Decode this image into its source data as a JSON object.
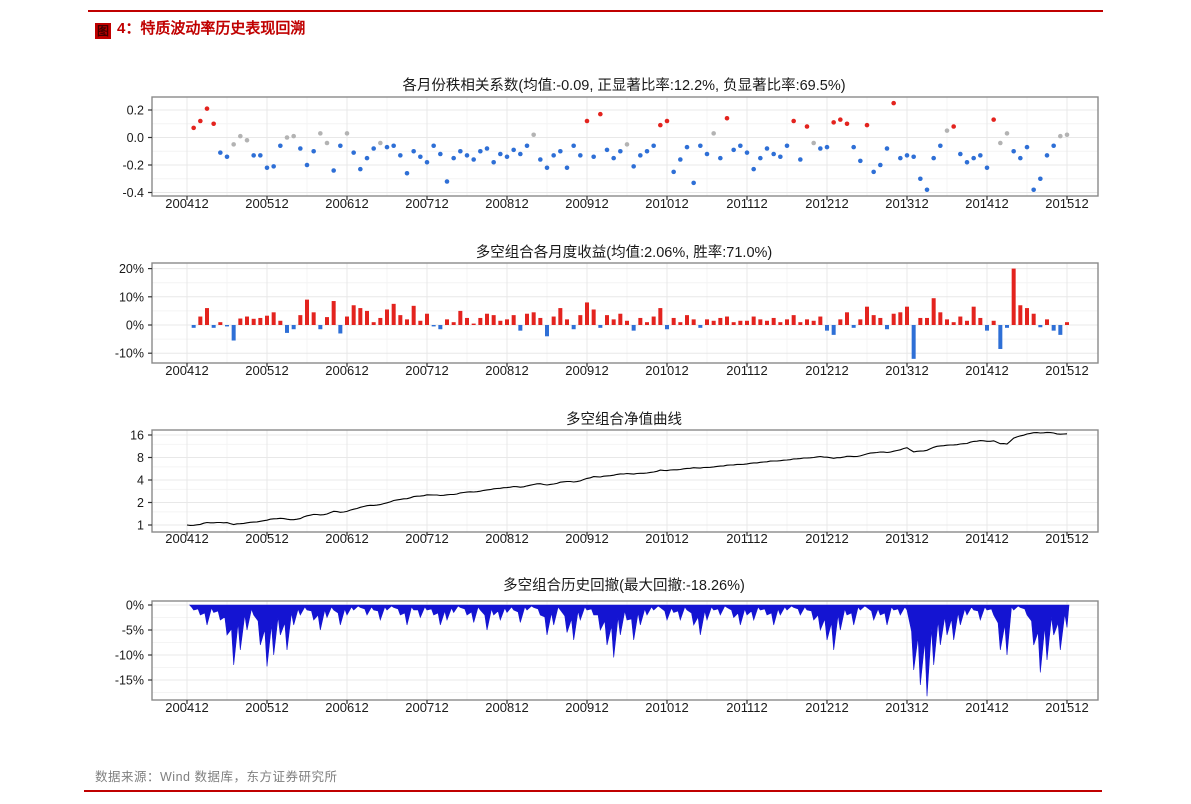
{
  "caption": {
    "badge_char": "图",
    "label": "4：特质波动率历史表现回溯",
    "accent_color": "#c00000"
  },
  "footer": {
    "source_text": "数据来源：Wind 数据库，东方证券研究所"
  },
  "palette": {
    "positive_red": "#e3231e",
    "negative_blue": "#2e6fd6",
    "neutral_gray": "#b3b3b3",
    "nav_line_black": "#000000",
    "drawdown_blue": "#1414d2",
    "rule_red": "#c00000",
    "panel_border": "#8a8a8a",
    "grid_major": "#e8e8e8",
    "grid_minor": "#f4f4f4",
    "tick_text": "#1a1a1a",
    "footer_gray": "#7f7f7f"
  },
  "x_axis": {
    "tick_labels": [
      "200412",
      "200512",
      "200612",
      "200712",
      "200812",
      "200912",
      "201012",
      "201112",
      "201212",
      "201312",
      "201412",
      "201512"
    ],
    "months_per_tick": 12
  },
  "chart_data": [
    {
      "id": "rank-correlation",
      "type": "scatter",
      "title": "各月份秩相关系数(均值:-0.09, 正显著比率:12.2%, 负显著比率:69.5%)",
      "mean": -0.09,
      "positive_significant_rate": "12.2%",
      "negative_significant_rate": "69.5%",
      "y_ticks": [
        "0.2",
        "0.0",
        "-0.2",
        "-0.4"
      ],
      "ylim": [
        -0.425,
        0.295
      ],
      "point_color_rule": "red if value > 0.05 (positive significant), blue if value < -0.05 (negative significant), gray otherwise",
      "values": [
        0.07,
        0.12,
        0.21,
        0.1,
        -0.11,
        -0.14,
        -0.05,
        0.01,
        -0.02,
        -0.13,
        -0.13,
        -0.22,
        -0.21,
        -0.06,
        0.0,
        0.01,
        -0.08,
        -0.2,
        -0.1,
        0.03,
        -0.04,
        -0.24,
        -0.06,
        0.03,
        -0.11,
        -0.23,
        -0.15,
        -0.08,
        -0.04,
        -0.07,
        -0.06,
        -0.13,
        -0.26,
        -0.1,
        -0.14,
        -0.18,
        -0.06,
        -0.12,
        -0.32,
        -0.15,
        -0.1,
        -0.13,
        -0.16,
        -0.1,
        -0.08,
        -0.18,
        -0.12,
        -0.14,
        -0.09,
        -0.12,
        -0.06,
        0.02,
        -0.16,
        -0.22,
        -0.13,
        -0.1,
        -0.22,
        -0.06,
        -0.13,
        0.12,
        -0.14,
        0.17,
        -0.09,
        -0.15,
        -0.1,
        -0.05,
        -0.21,
        -0.13,
        -0.1,
        -0.06,
        0.09,
        0.12,
        -0.25,
        -0.16,
        -0.07,
        -0.33,
        -0.06,
        -0.12,
        0.03,
        -0.15,
        0.14,
        -0.09,
        -0.06,
        -0.11,
        -0.23,
        -0.15,
        -0.08,
        -0.12,
        -0.14,
        -0.06,
        0.12,
        -0.16,
        0.08,
        -0.04,
        -0.08,
        -0.07,
        0.11,
        0.13,
        0.1,
        -0.07,
        -0.17,
        0.09,
        -0.25,
        -0.2,
        -0.08,
        0.25,
        -0.15,
        -0.13,
        -0.14,
        -0.3,
        -0.38,
        -0.15,
        -0.06,
        0.05,
        0.08,
        -0.12,
        -0.18,
        -0.15,
        -0.13,
        -0.22,
        0.13,
        -0.04,
        0.03,
        -0.1,
        -0.15,
        -0.07,
        -0.38,
        -0.3,
        -0.13,
        -0.06,
        0.01,
        0.02
      ]
    },
    {
      "id": "monthly-returns",
      "type": "bar",
      "title": "多空组合各月度收益(均值:2.06%, 胜率:71.0%)",
      "mean": "2.06%",
      "win_rate": "71.0%",
      "unit": "%",
      "y_ticks": [
        "20%",
        "10%",
        "0%",
        "-10%"
      ],
      "ylim": [
        -13.5,
        22
      ],
      "bar_color_rule": "red if positive, blue if negative",
      "values": [
        -1.0,
        3.0,
        6.0,
        -1.0,
        1.0,
        -0.5,
        -5.5,
        2.3,
        3.0,
        2.2,
        2.5,
        3.3,
        4.5,
        1.5,
        -2.8,
        -1.5,
        3.5,
        9.0,
        4.5,
        -1.5,
        2.8,
        8.5,
        -3.0,
        3.0,
        7.0,
        6.0,
        5.0,
        1.0,
        2.5,
        5.5,
        7.5,
        3.5,
        2.0,
        6.8,
        1.5,
        4.0,
        -0.5,
        -1.5,
        2.0,
        1.0,
        5.0,
        2.5,
        0.5,
        2.5,
        4.0,
        3.5,
        1.5,
        2.0,
        3.5,
        -2.0,
        4.0,
        4.5,
        2.5,
        -4.0,
        3.0,
        6.0,
        2.0,
        -1.5,
        3.5,
        8.0,
        5.5,
        -1.0,
        3.5,
        2.0,
        4.0,
        1.5,
        -2.0,
        2.5,
        1.0,
        3.0,
        6.0,
        -1.5,
        2.5,
        1.0,
        3.5,
        2.0,
        -1.0,
        2.0,
        1.5,
        2.5,
        3.0,
        1.0,
        1.5,
        1.5,
        3.0,
        2.0,
        1.5,
        2.5,
        1.0,
        2.0,
        3.5,
        1.0,
        2.0,
        1.5,
        3.0,
        -2.0,
        -3.5,
        2.0,
        4.5,
        -1.0,
        2.0,
        6.5,
        3.5,
        2.5,
        -1.5,
        4.0,
        4.5,
        6.5,
        -12.0,
        2.5,
        2.5,
        9.5,
        4.5,
        2.0,
        1.0,
        3.0,
        1.5,
        6.5,
        2.5,
        -2.0,
        1.5,
        -8.5,
        -1.0,
        20.0,
        7.0,
        6.0,
        4.0,
        -0.8,
        2.0,
        -2.0,
        -3.5,
        1.0
      ]
    },
    {
      "id": "nav-curve",
      "type": "line",
      "title": "多空组合净值曲线",
      "scale": "log2",
      "y_ticks": [
        "16",
        "8",
        "4",
        "2",
        "1"
      ],
      "start_value": 1,
      "derivation": "cumulative product of (1 + monthly return) from the monthly-returns series",
      "year_end_values": {
        "200412": 1.0,
        "200512": 1.15,
        "200612": 1.5,
        "200712": 2.5,
        "200812": 3.2,
        "200912": 4.6,
        "201012": 5.8,
        "201112": 6.8,
        "201212": 8.0,
        "201312": 10.5,
        "201412": 11.5,
        "201512": 13.5
      }
    },
    {
      "id": "historical-drawdown",
      "type": "area",
      "title": "多空组合历史回撤(最大回撤:-18.26%)",
      "max_drawdown": "-18.26%",
      "unit": "%",
      "y_ticks": [
        "0%",
        "-5%",
        "-10%",
        "-15%"
      ],
      "ylim": [
        -19,
        0.8
      ],
      "values": [
        -1.0,
        -2.0,
        -4.0,
        -1.5,
        -3.0,
        -6.0,
        -12.0,
        -9.0,
        -5.0,
        -2.0,
        -8.0,
        -12.3,
        -10.0,
        -6.0,
        -9.0,
        -4.0,
        -2.0,
        -1.0,
        -3.0,
        -5.0,
        -2.5,
        -1.0,
        -4.0,
        -2.0,
        -1.0,
        -0.5,
        -2.0,
        -1.0,
        -3.0,
        -1.0,
        -0.5,
        -2.0,
        -4.0,
        -1.0,
        -2.5,
        -1.0,
        -2.0,
        -4.0,
        -3.0,
        -1.5,
        -0.5,
        -2.0,
        -3.5,
        -1.0,
        -5.0,
        -2.0,
        -3.0,
        -1.5,
        -1.0,
        -3.5,
        -1.0,
        -0.5,
        -2.0,
        -6.0,
        -4.0,
        -1.0,
        -5.5,
        -7.0,
        -3.0,
        -1.0,
        -2.0,
        -5.0,
        -8.0,
        -10.5,
        -6.0,
        -3.0,
        -7.0,
        -4.0,
        -2.0,
        -1.0,
        -0.5,
        -3.0,
        -1.5,
        -3.0,
        -1.0,
        -4.0,
        -6.0,
        -3.0,
        -1.0,
        -2.0,
        -0.5,
        -2.5,
        -4.0,
        -2.0,
        -3.0,
        -1.0,
        -2.0,
        -4.0,
        -2.0,
        -1.0,
        -0.5,
        -2.0,
        -1.0,
        -3.0,
        -5.0,
        -7.0,
        -9.0,
        -5.0,
        -2.0,
        -4.0,
        -1.0,
        -0.5,
        -3.0,
        -2.0,
        -4.0,
        -1.0,
        -2.0,
        -1.0,
        -13.0,
        -16.0,
        -18.26,
        -12.0,
        -8.0,
        -6.0,
        -7.0,
        -4.0,
        -2.0,
        -1.0,
        -3.0,
        -1.0,
        -2.0,
        -9.0,
        -10.0,
        -1.0,
        -0.5,
        -2.0,
        -8.0,
        -13.5,
        -11.0,
        -6.0,
        -9.0,
        -4.5
      ]
    }
  ]
}
